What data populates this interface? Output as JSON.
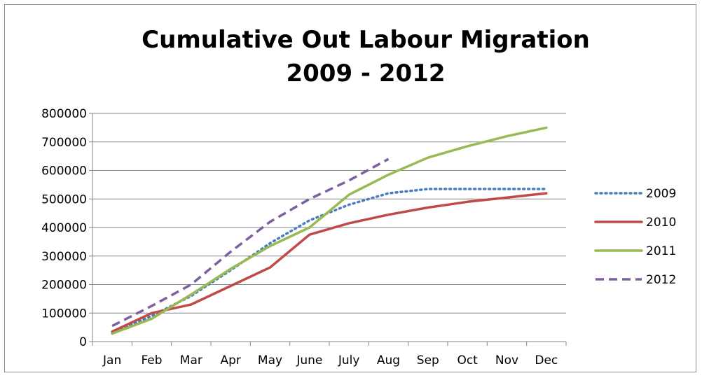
{
  "chart_data": {
    "type": "line",
    "title": "Cumulative Out Labour Migration",
    "subtitle": "2009 - 2012",
    "xlabel": "",
    "ylabel": "",
    "categories": [
      "Jan",
      "Feb",
      "Mar",
      "Apr",
      "May",
      "June",
      "July",
      "Aug",
      "Sep",
      "Oct",
      "Nov",
      "Dec"
    ],
    "ylim": [
      0,
      800000
    ],
    "yticks": [
      "0",
      "100000",
      "200000",
      "300000",
      "400000",
      "500000",
      "600000",
      "700000",
      "800000"
    ],
    "grid": true,
    "legend_position": "right",
    "series": [
      {
        "name": "2009",
        "color": "#4a7ebb",
        "dash": "dotted",
        "values": [
          30000,
          90000,
          160000,
          250000,
          345000,
          425000,
          480000,
          520000,
          535000,
          535000,
          535000,
          535000
        ]
      },
      {
        "name": "2010",
        "color": "#be4b48",
        "dash": "solid",
        "values": [
          35000,
          100000,
          130000,
          195000,
          260000,
          375000,
          415000,
          445000,
          470000,
          490000,
          505000,
          520000
        ]
      },
      {
        "name": "2011",
        "color": "#98b954",
        "dash": "solid",
        "values": [
          28000,
          80000,
          165000,
          255000,
          335000,
          400000,
          515000,
          585000,
          645000,
          685000,
          720000,
          750000
        ]
      },
      {
        "name": "2012",
        "color": "#7d60a0",
        "dash": "dashed",
        "values": [
          55000,
          125000,
          200000,
          315000,
          420000,
          500000,
          565000,
          640000,
          null,
          null,
          null,
          null
        ]
      }
    ]
  }
}
